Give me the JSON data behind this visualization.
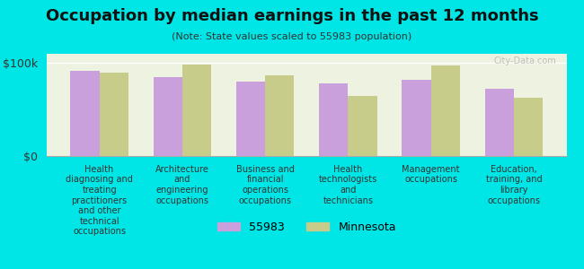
{
  "title": "Occupation by median earnings in the past 12 months",
  "subtitle": "(Note: State values scaled to 55983 population)",
  "categories": [
    "Health\ndiagnosing and\ntreating\npractitioners\nand other\ntechnical\noccupations",
    "Architecture\nand\nengineering\noccupations",
    "Business and\nfinancial\noperations\noccupations",
    "Health\ntechnologists\nand\ntechnicians",
    "Management\noccupations",
    "Education,\ntraining, and\nlibrary\noccupations"
  ],
  "values_55983": [
    92000,
    85000,
    80000,
    78000,
    82000,
    72000
  ],
  "values_minnesota": [
    90000,
    98000,
    87000,
    65000,
    97000,
    63000
  ],
  "color_55983": "#c9a0dc",
  "color_minnesota": "#c8cc8a",
  "background_outer": "#00e5e5",
  "background_chart": "#eef2e0",
  "ylim": [
    0,
    110000
  ],
  "yticks": [
    0,
    100000
  ],
  "ytick_labels": [
    "$0",
    "$100k"
  ],
  "legend_label_55983": "55983",
  "legend_label_minnesota": "Minnesota",
  "watermark": "City-Data.com"
}
